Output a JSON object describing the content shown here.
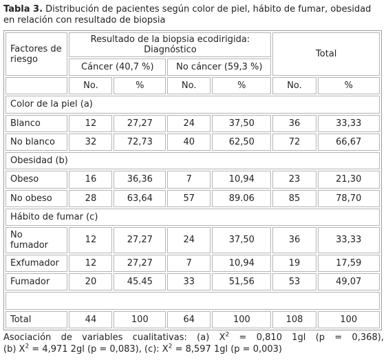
{
  "title": {
    "label": "Tabla 3.",
    "text": "Distribución de pacientes según color de piel, hábito de fumar, obesidad en relación con resultado de biopsia"
  },
  "header": {
    "factores": "Factores de riesgo",
    "resultado": "Resultado de la biopsia ecodirigida: Diagnóstico",
    "cancer": "Cáncer (40,7 %)",
    "no_cancer": "No cáncer (59,3 %)",
    "total": "Total",
    "no_label": "No.",
    "pct_label": "%"
  },
  "sections": [
    {
      "title": "Color de la piel (a)",
      "rows": [
        {
          "label": "Blanco",
          "values": [
            "12",
            "27,27",
            "24",
            "37,50",
            "36",
            "33,33"
          ]
        },
        {
          "label": "No blanco",
          "values": [
            "32",
            "72,73",
            "40",
            "62,50",
            "72",
            "66,67"
          ]
        }
      ]
    },
    {
      "title": "Obesidad (b)",
      "rows": [
        {
          "label": "Obeso",
          "values": [
            "16",
            "36,36",
            "7",
            "10,94",
            "23",
            "21,30"
          ]
        },
        {
          "label": "No obeso",
          "values": [
            "28",
            "63,64",
            "57",
            "89.06",
            "85",
            "78,70"
          ]
        }
      ]
    },
    {
      "title": "Hábito de fumar (c)",
      "rows": [
        {
          "label": "No fumador",
          "values": [
            "12",
            "27,27",
            "24",
            "37,50",
            "36",
            "33,33"
          ]
        },
        {
          "label": "Exfumador",
          "values": [
            "12",
            "27,27",
            "7",
            "10,94",
            "19",
            "17,59"
          ]
        },
        {
          "label": "Fumador",
          "values": [
            "20",
            "45.45",
            "33",
            "51,56",
            "53",
            "49,07"
          ]
        }
      ]
    }
  ],
  "total_row": {
    "label": "Total",
    "values": [
      "44",
      "100",
      "64",
      "100",
      "108",
      "100"
    ]
  },
  "footnote": {
    "intro": "Asociación de variables cualitativas:",
    "a": "(a) X",
    "a_rest": " = 0,810 1gl (p = 0,368),",
    "b": "(b) X",
    "b_rest": " = 4,971 2gl (p = 0,083),",
    "c": "(c): X",
    "c_rest": " = 8,597 1gl (p = 0,003)",
    "sup": "2"
  }
}
